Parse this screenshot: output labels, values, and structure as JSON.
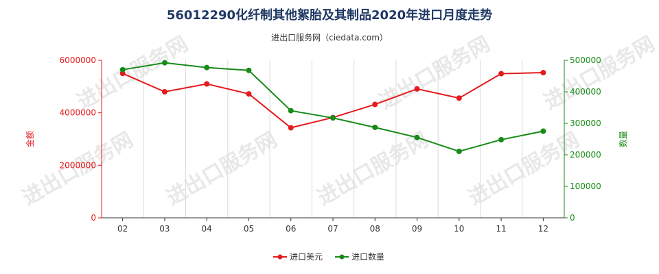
{
  "title": "56012290化纤制其他絮胎及其制品2020年进口月度走势",
  "subtitle": "进出口服务网（ciedata.com）",
  "watermark": "进出口服务网",
  "colors": {
    "amount": "#e41a1c",
    "quantity": "#168b16",
    "title": "#1f3864"
  },
  "chart_data": {
    "type": "line",
    "categories": [
      "02",
      "03",
      "04",
      "05",
      "06",
      "07",
      "08",
      "09",
      "10",
      "11",
      "12"
    ],
    "y_left": {
      "label": "金额",
      "ylim": [
        0,
        6000000
      ],
      "ticks": [
        "0",
        "2000000",
        "4000000",
        "6000000"
      ]
    },
    "y_right": {
      "label": "数量",
      "ylim": [
        0,
        500000
      ],
      "ticks": [
        "0",
        "100000",
        "200000",
        "300000",
        "400000",
        "500000"
      ]
    },
    "series": [
      {
        "name": "进口美元",
        "axis": "left",
        "color": "#e41a1c",
        "values": [
          5500000,
          4800000,
          5100000,
          4720000,
          3430000,
          3820000,
          4320000,
          4910000,
          4560000,
          5490000,
          5530000
        ]
      },
      {
        "name": "进口数量",
        "axis": "right",
        "color": "#168b16",
        "values": [
          470000,
          492000,
          477000,
          468000,
          340000,
          317000,
          287000,
          255000,
          211000,
          248000,
          275000
        ]
      }
    ],
    "legend_position": "bottom",
    "grid": "vertical"
  }
}
